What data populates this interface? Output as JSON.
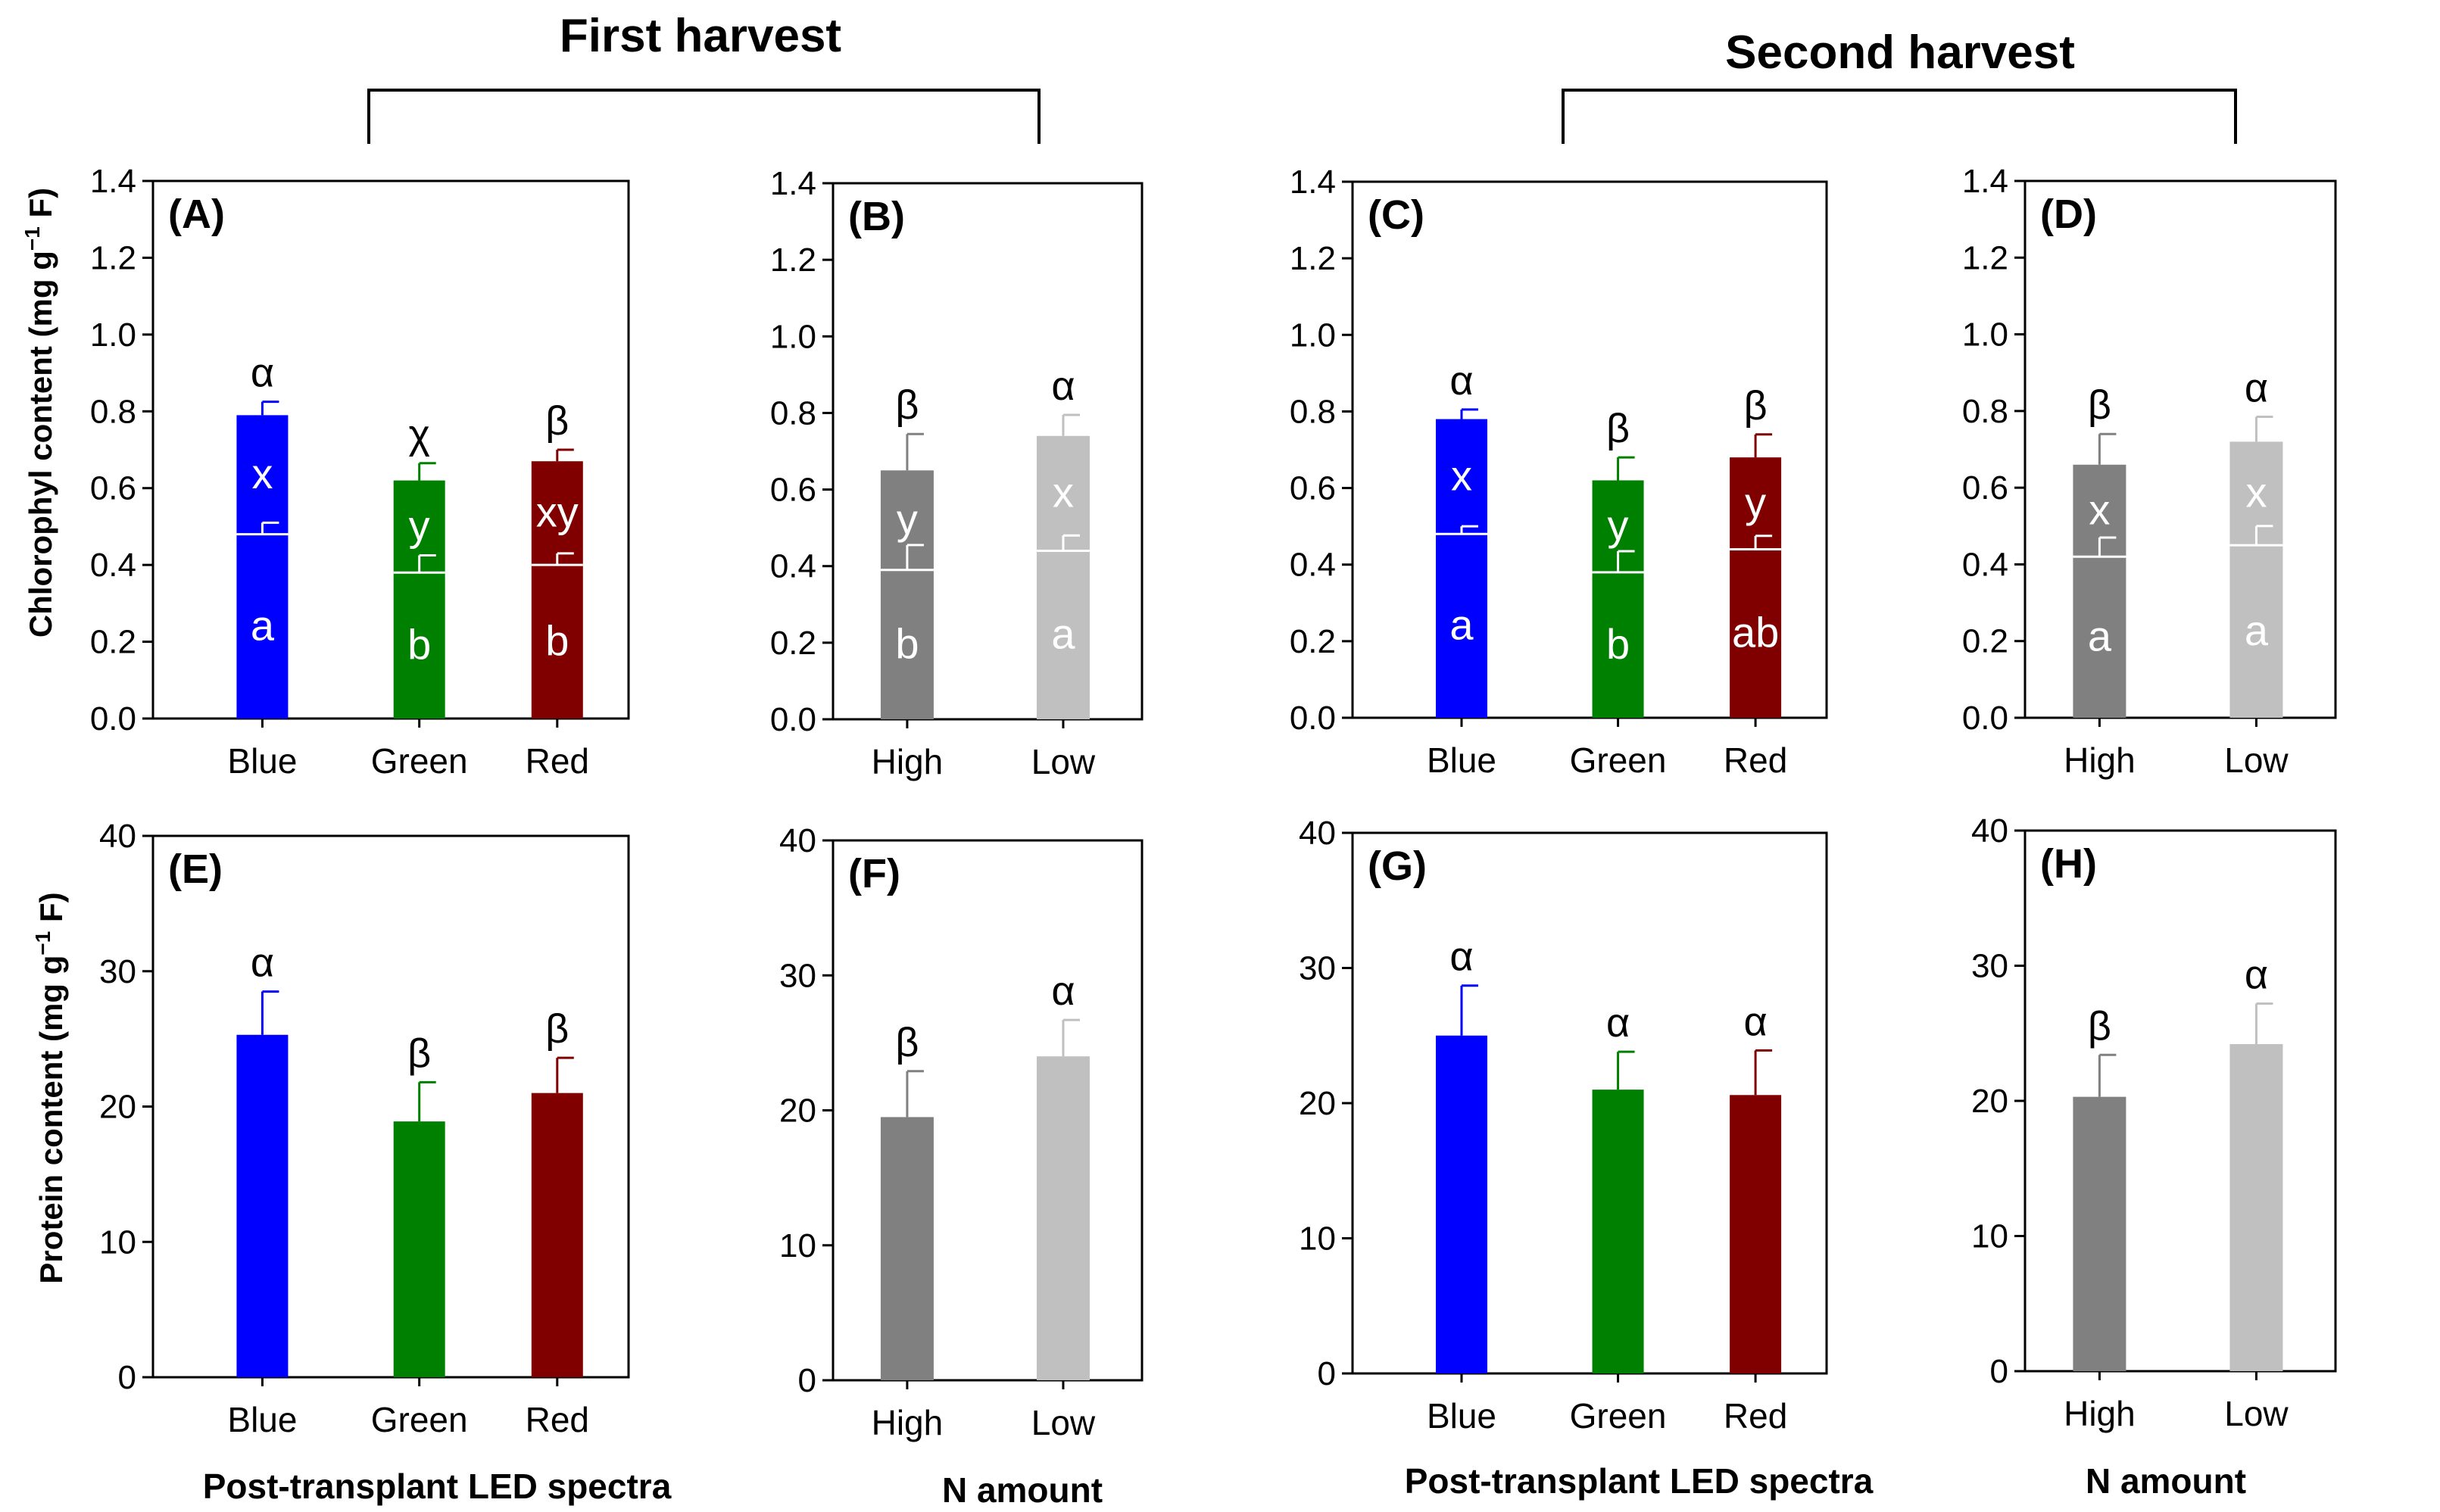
{
  "harvest_labels": [
    "First harvest",
    "Second harvest"
  ],
  "x_axis_labels": {
    "spectra": "Post-transplant LED spectra",
    "n_amount": "N amount"
  },
  "y_axis_labels": {
    "chlorophyll": "Chlorophyl content (mg g",
    "chlorophyll_sup": "−1",
    "chlorophyll_end": " F)",
    "protein": "Protein content (mg g",
    "protein_sup": "−1",
    "protein_end": " F)"
  },
  "colors": {
    "blue": "#0000ff",
    "green": "#008000",
    "red": "#800000",
    "dark_gray": "#808080",
    "light_gray": "#c0c0c0"
  },
  "chart_data": [
    {
      "panel": "(A)",
      "type": "bar",
      "stacked": true,
      "harvest": "First harvest",
      "categories": [
        "Blue",
        "Green",
        "Red"
      ],
      "ylim": [
        0,
        1.4
      ],
      "yticks": [
        "0.0",
        "0.2",
        "0.4",
        "0.6",
        "0.8",
        "1.0",
        "1.2",
        "1.4"
      ],
      "ylabel": "Chlorophyl content (mg g−1 F)",
      "xlabel": "",
      "colors": [
        "blue",
        "green",
        "red"
      ],
      "series": [
        {
          "name": "lower",
          "values": [
            0.48,
            0.38,
            0.4
          ],
          "errors": [
            0.03,
            0.045,
            0.03
          ],
          "letters": [
            "a",
            "b",
            "b"
          ]
        },
        {
          "name": "upper",
          "values": [
            0.79,
            0.62,
            0.67
          ],
          "errors": [
            0.035,
            0.045,
            0.03
          ],
          "letters": [
            "x",
            "y",
            "xy"
          ]
        }
      ],
      "top_letters": [
        "α",
        "χ",
        "β"
      ]
    },
    {
      "panel": "(B)",
      "type": "bar",
      "stacked": true,
      "harvest": "First harvest",
      "categories": [
        "High",
        "Low"
      ],
      "ylim": [
        0,
        1.4
      ],
      "yticks": [
        "0.0",
        "0.2",
        "0.4",
        "0.6",
        "0.8",
        "1.0",
        "1.2",
        "1.4"
      ],
      "ylabel": "",
      "xlabel": "",
      "colors": [
        "dark_gray",
        "light_gray"
      ],
      "series": [
        {
          "name": "lower",
          "values": [
            0.39,
            0.44
          ],
          "errors": [
            0.065,
            0.04
          ],
          "letters": [
            "b",
            "a"
          ]
        },
        {
          "name": "upper",
          "values": [
            0.65,
            0.74
          ],
          "errors": [
            0.095,
            0.055
          ],
          "letters": [
            "y",
            "x"
          ]
        }
      ],
      "top_letters": [
        "β",
        "α"
      ]
    },
    {
      "panel": "(C)",
      "type": "bar",
      "stacked": true,
      "harvest": "Second harvest",
      "categories": [
        "Blue",
        "Green",
        "Red"
      ],
      "ylim": [
        0,
        1.4
      ],
      "yticks": [
        "0.0",
        "0.2",
        "0.4",
        "0.6",
        "0.8",
        "1.0",
        "1.2",
        "1.4"
      ],
      "ylabel": "",
      "xlabel": "",
      "colors": [
        "blue",
        "green",
        "red"
      ],
      "series": [
        {
          "name": "lower",
          "values": [
            0.48,
            0.38,
            0.44
          ],
          "errors": [
            0.02,
            0.055,
            0.035
          ],
          "letters": [
            "a",
            "b",
            "ab"
          ]
        },
        {
          "name": "upper",
          "values": [
            0.78,
            0.62,
            0.68
          ],
          "errors": [
            0.025,
            0.06,
            0.06
          ],
          "letters": [
            "x",
            "y",
            "y"
          ]
        }
      ],
      "top_letters": [
        "α",
        "β",
        "β"
      ]
    },
    {
      "panel": "(D)",
      "type": "bar",
      "stacked": true,
      "harvest": "Second harvest",
      "categories": [
        "High",
        "Low"
      ],
      "ylim": [
        0,
        1.4
      ],
      "yticks": [
        "0.0",
        "0.2",
        "0.4",
        "0.6",
        "0.8",
        "1.0",
        "1.2",
        "1.4"
      ],
      "ylabel": "",
      "xlabel": "",
      "colors": [
        "dark_gray",
        "light_gray"
      ],
      "series": [
        {
          "name": "lower",
          "values": [
            0.42,
            0.45
          ],
          "errors": [
            0.05,
            0.05
          ],
          "letters": [
            "a",
            "a"
          ]
        },
        {
          "name": "upper",
          "values": [
            0.66,
            0.72
          ],
          "errors": [
            0.08,
            0.065
          ],
          "letters": [
            "x",
            "x"
          ]
        }
      ],
      "top_letters": [
        "β",
        "α"
      ]
    },
    {
      "panel": "(E)",
      "type": "bar",
      "stacked": false,
      "harvest": "First harvest",
      "categories": [
        "Blue",
        "Green",
        "Red"
      ],
      "ylim": [
        0,
        40
      ],
      "yticks": [
        "0",
        "10",
        "20",
        "30",
        "40"
      ],
      "ylabel": "Protein content (mg g−1 F)",
      "xlabel": "Post-transplant LED spectra",
      "colors": [
        "blue",
        "green",
        "red"
      ],
      "series": [
        {
          "name": "protein",
          "values": [
            25.3,
            18.9,
            21.0
          ],
          "errors": [
            3.2,
            2.9,
            2.6
          ]
        }
      ],
      "top_letters": [
        "α",
        "β",
        "β"
      ]
    },
    {
      "panel": "(F)",
      "type": "bar",
      "stacked": false,
      "harvest": "First harvest",
      "categories": [
        "High",
        "Low"
      ],
      "ylim": [
        0,
        40
      ],
      "yticks": [
        "0",
        "10",
        "20",
        "30",
        "40"
      ],
      "ylabel": "",
      "xlabel": "N amount",
      "colors": [
        "dark_gray",
        "light_gray"
      ],
      "series": [
        {
          "name": "protein",
          "values": [
            19.5,
            24.0
          ],
          "errors": [
            3.4,
            2.7
          ]
        }
      ],
      "top_letters": [
        "β",
        "α"
      ]
    },
    {
      "panel": "(G)",
      "type": "bar",
      "stacked": false,
      "harvest": "Second harvest",
      "categories": [
        "Blue",
        "Green",
        "Red"
      ],
      "ylim": [
        0,
        40
      ],
      "yticks": [
        "0",
        "10",
        "20",
        "30",
        "40"
      ],
      "ylabel": "",
      "xlabel": "Post-transplant LED spectra",
      "colors": [
        "blue",
        "green",
        "red"
      ],
      "series": [
        {
          "name": "protein",
          "values": [
            25.0,
            21.0,
            20.6
          ],
          "errors": [
            3.7,
            2.8,
            3.3
          ]
        }
      ],
      "top_letters": [
        "α",
        "α",
        "α"
      ]
    },
    {
      "panel": "(H)",
      "type": "bar",
      "stacked": false,
      "harvest": "Second harvest",
      "categories": [
        "High",
        "Low"
      ],
      "ylim": [
        0,
        40
      ],
      "yticks": [
        "0",
        "10",
        "20",
        "30",
        "40"
      ],
      "ylabel": "",
      "xlabel": "N amount",
      "colors": [
        "dark_gray",
        "light_gray"
      ],
      "series": [
        {
          "name": "protein",
          "values": [
            20.3,
            24.2
          ],
          "errors": [
            3.1,
            3.0
          ]
        }
      ],
      "top_letters": [
        "β",
        "α"
      ]
    }
  ]
}
